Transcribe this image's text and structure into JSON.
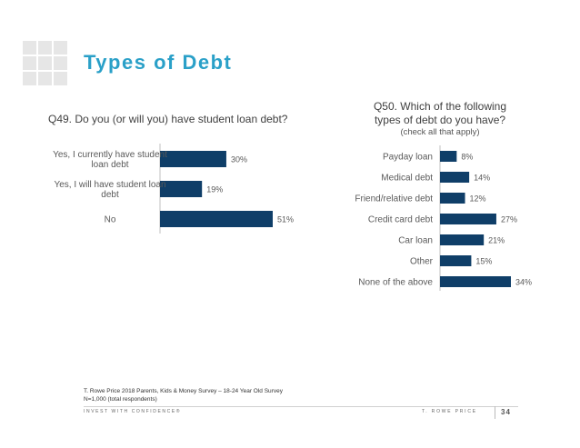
{
  "slide": {
    "title": "Types of Debt",
    "page_number": "34",
    "source_line1": "T. Rowe Price 2018 Parents, Kids & Money Survey – 18-24 Year Old Survey",
    "source_line2": "N=1,000 (total respondents)",
    "tagline": "INVEST WITH CONFIDENCE®",
    "brand": "T. ROWE PRICE"
  },
  "chart_data": [
    {
      "type": "bar",
      "orientation": "horizontal",
      "title": "Q49. Do you (or will you) have student loan debt?",
      "categories": [
        [
          "Yes, I currently have student",
          "loan debt"
        ],
        [
          "Yes, I will have student loan",
          "debt"
        ],
        [
          "No"
        ]
      ],
      "values": [
        30,
        19,
        51
      ],
      "value_labels": [
        "30%",
        "19%",
        "51%"
      ],
      "unit": "%",
      "xlim": [
        0,
        51
      ],
      "color": "#0f3e68"
    },
    {
      "type": "bar",
      "orientation": "horizontal",
      "title": "Q50. Which of the following types of debt do you have?",
      "title_line1": "Q50. Which of the following",
      "title_line2": "types of debt do you have?",
      "subtitle": "(check all that apply)",
      "categories": [
        [
          "Payday loan"
        ],
        [
          "Medical debt"
        ],
        [
          "Friend/relative debt"
        ],
        [
          "Credit card debt"
        ],
        [
          "Car loan"
        ],
        [
          "Other"
        ],
        [
          "None of the above"
        ]
      ],
      "values": [
        8,
        14,
        12,
        27,
        21,
        15,
        34
      ],
      "value_labels": [
        "8%",
        "14%",
        "12%",
        "27%",
        "21%",
        "15%",
        "34%"
      ],
      "unit": "%",
      "xlim": [
        0,
        34
      ],
      "color": "#0f3e68"
    }
  ]
}
